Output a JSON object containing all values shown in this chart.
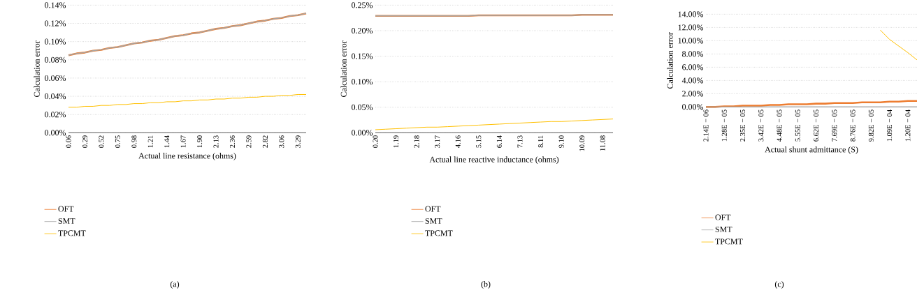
{
  "chart_data": [
    {
      "type": "line",
      "xlabel": "Actual line resistance (ohms)",
      "ylabel": "Calculation error",
      "annotations": [
        "(a)"
      ],
      "categories": [
        "0.06",
        null,
        "0.29",
        null,
        "0.52",
        null,
        "0.75",
        null,
        "0.98",
        null,
        "1.21",
        null,
        "1.44",
        null,
        "1.67",
        null,
        "1.90",
        null,
        "2.13",
        null,
        "2.36",
        null,
        "2.59",
        null,
        "2.82",
        null,
        "3.06",
        null,
        "3.29",
        null
      ],
      "ylim": [
        0,
        0.14
      ],
      "yticks": [
        {
          "value": 0,
          "label": "0.00%"
        },
        {
          "value": 0.02,
          "label": "0.02%"
        },
        {
          "value": 0.04,
          "label": "0.04%"
        },
        {
          "value": 0.06,
          "label": "0.06%"
        },
        {
          "value": 0.08,
          "label": "0.08%"
        },
        {
          "value": 0.1,
          "label": "0.10%"
        },
        {
          "value": 0.12,
          "label": "0.12%"
        },
        {
          "value": 0.14,
          "label": "0.14%"
        }
      ],
      "grid": "y",
      "legend": "bottom",
      "marker": "none",
      "line_style": "solid",
      "series": [
        {
          "name": "OFT",
          "color": "#ed7d31",
          "values": [
            0.085,
            0.087,
            0.088,
            0.09,
            0.091,
            0.093,
            0.094,
            0.096,
            0.098,
            0.099,
            0.101,
            0.102,
            0.104,
            0.106,
            0.107,
            0.109,
            0.11,
            0.112,
            0.114,
            0.115,
            0.117,
            0.118,
            0.12,
            0.122,
            0.123,
            0.125,
            0.126,
            0.128,
            0.129,
            0.131
          ]
        },
        {
          "name": "SMT",
          "color": "#a5a5a5",
          "values": [
            0.085,
            0.087,
            0.088,
            0.09,
            0.091,
            0.093,
            0.094,
            0.096,
            0.098,
            0.099,
            0.101,
            0.102,
            0.104,
            0.106,
            0.107,
            0.109,
            0.11,
            0.112,
            0.114,
            0.115,
            0.117,
            0.118,
            0.12,
            0.122,
            0.123,
            0.125,
            0.126,
            0.128,
            0.129,
            0.131
          ]
        },
        {
          "name": "TPCMT",
          "color": "#ffc000",
          "values": [
            0.028,
            0.028,
            0.029,
            0.029,
            0.03,
            0.03,
            0.031,
            0.031,
            0.032,
            0.032,
            0.033,
            0.033,
            0.034,
            0.034,
            0.035,
            0.035,
            0.036,
            0.036,
            0.037,
            0.037,
            0.038,
            0.038,
            0.039,
            0.039,
            0.04,
            0.04,
            0.041,
            0.041,
            0.042,
            0.042
          ]
        }
      ]
    },
    {
      "type": "line",
      "xlabel": "Actual line reactive inductance (ohms)",
      "ylabel": "Calculation error",
      "annotations": [
        "(b)"
      ],
      "categories": [
        "0.20",
        null,
        "1.19",
        null,
        "2.18",
        null,
        "3.17",
        null,
        "4.16",
        null,
        "5.15",
        null,
        "6.14",
        null,
        "7.13",
        null,
        "8.11",
        null,
        "9.10",
        null,
        "10.09",
        null,
        "11.08",
        null
      ],
      "ylim": [
        0,
        0.25
      ],
      "yticks": [
        {
          "value": 0,
          "label": "0.00%"
        },
        {
          "value": 0.05,
          "label": "0.05%"
        },
        {
          "value": 0.1,
          "label": "0.10%"
        },
        {
          "value": 0.15,
          "label": "0.15%"
        },
        {
          "value": 0.2,
          "label": "0.20%"
        },
        {
          "value": 0.25,
          "label": "0.25%"
        }
      ],
      "grid": "y",
      "legend": "bottom",
      "marker": "none",
      "line_style": "solid",
      "series": [
        {
          "name": "OFT",
          "color": "#ed7d31",
          "values": [
            0.229,
            0.229,
            0.229,
            0.229,
            0.229,
            0.229,
            0.229,
            0.229,
            0.229,
            0.229,
            0.23,
            0.23,
            0.23,
            0.23,
            0.23,
            0.23,
            0.23,
            0.23,
            0.23,
            0.23,
            0.231,
            0.231,
            0.231,
            0.231
          ]
        },
        {
          "name": "SMT",
          "color": "#a5a5a5",
          "values": [
            0.229,
            0.229,
            0.229,
            0.229,
            0.229,
            0.229,
            0.229,
            0.229,
            0.229,
            0.229,
            0.23,
            0.23,
            0.23,
            0.23,
            0.23,
            0.23,
            0.23,
            0.23,
            0.23,
            0.23,
            0.231,
            0.231,
            0.231,
            0.231
          ]
        },
        {
          "name": "TPCMT",
          "color": "#ffc000",
          "values": [
            0.006,
            0.007,
            0.008,
            0.009,
            0.01,
            0.011,
            0.011,
            0.012,
            0.013,
            0.014,
            0.015,
            0.016,
            0.017,
            0.018,
            0.019,
            0.02,
            0.021,
            0.022,
            0.022,
            0.023,
            0.024,
            0.025,
            0.026,
            0.027
          ]
        }
      ]
    },
    {
      "type": "line",
      "xlabel": "Actual shunt admittance (S)",
      "ylabel": "Calculation error",
      "annotations": [
        "(c)"
      ],
      "categories": [
        "2.14E − 06",
        null,
        "1.28E − 05",
        null,
        "2.35E − 05",
        null,
        "3.42E − 05",
        null,
        "4.48E − 05",
        null,
        "5.55E − 05",
        null,
        "6.62E − 05",
        null,
        "7.69E − 05",
        null,
        "8.76E − 05",
        null,
        "9.82E − 05",
        null,
        "1.09E − 04",
        null,
        "1.20E − 04",
        null
      ],
      "ylim": [
        0,
        14
      ],
      "yticks": [
        {
          "value": 0,
          "label": "0.00%"
        },
        {
          "value": 2,
          "label": "2.00%"
        },
        {
          "value": 4,
          "label": "4.00%"
        },
        {
          "value": 6,
          "label": "6.00%"
        },
        {
          "value": 8,
          "label": "8.00%"
        },
        {
          "value": 10,
          "label": "10.00%"
        },
        {
          "value": 12,
          "label": "12.00%"
        },
        {
          "value": 14,
          "label": "14.00%"
        }
      ],
      "grid": "y",
      "legend": "bottom",
      "marker": "none",
      "line_style": "solid",
      "series": [
        {
          "name": "OFT",
          "color": "#ed7d31",
          "values": [
            0.0,
            0.0,
            0.1,
            0.1,
            0.2,
            0.2,
            0.2,
            0.3,
            0.3,
            0.4,
            0.4,
            0.4,
            0.5,
            0.5,
            0.6,
            0.6,
            0.6,
            0.7,
            0.7,
            0.7,
            0.8,
            0.8,
            0.9,
            0.9
          ]
        },
        {
          "name": "SMT",
          "color": "#a5a5a5",
          "values": [
            0,
            0,
            0,
            0,
            0,
            0,
            0,
            0,
            0,
            0,
            0,
            0,
            0,
            0,
            0,
            0,
            0,
            0,
            0,
            0,
            0,
            0,
            0,
            0
          ]
        },
        {
          "name": "TPCMT",
          "color": "#ffc000",
          "values": [
            null,
            null,
            null,
            null,
            null,
            null,
            null,
            null,
            null,
            null,
            null,
            null,
            null,
            null,
            null,
            null,
            null,
            null,
            null,
            11.6,
            10.2,
            9.2,
            8.2,
            7.1
          ]
        }
      ]
    }
  ]
}
